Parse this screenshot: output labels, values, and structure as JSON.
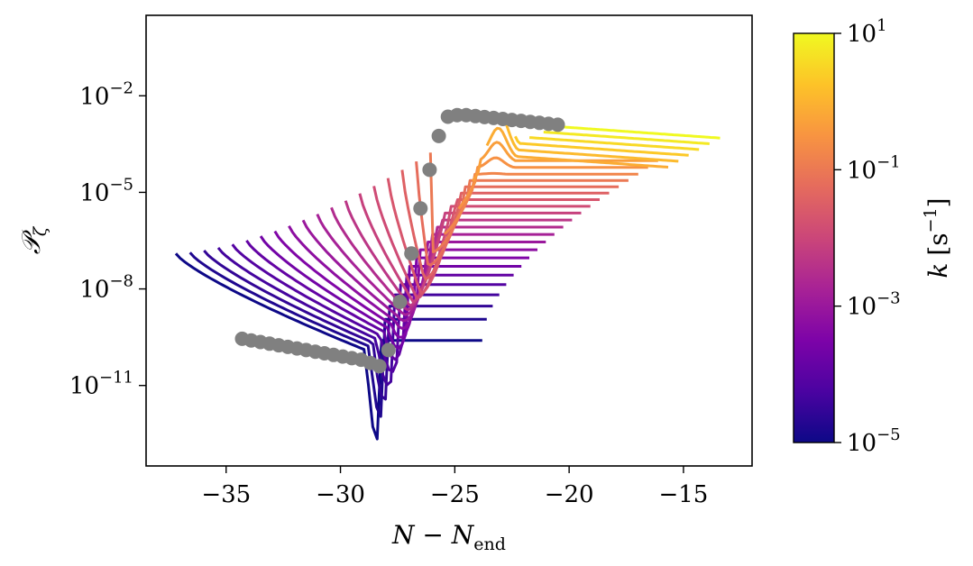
{
  "chart_data": {
    "type": "line",
    "xlabel": "N − N_end",
    "ylabel": "𝒫_ζ",
    "xlim": [
      -38.5,
      -12
    ],
    "ylim_log10": [
      -13.5,
      0.5
    ],
    "y_scale": "log",
    "grid": false,
    "x_ticks": [
      "−35",
      "−30",
      "−25",
      "−20",
      "−15"
    ],
    "x_tick_values": [
      -35,
      -30,
      -25,
      -20,
      -15
    ],
    "y_ticks": [
      {
        "base": "10",
        "exp": "−2",
        "value": -2
      },
      {
        "base": "10",
        "exp": "−5",
        "value": -5
      },
      {
        "base": "10",
        "exp": "−8",
        "value": -8
      },
      {
        "base": "10",
        "exp": "−11",
        "value": -11
      }
    ],
    "colorbar": {
      "label": "k [s⁻¹]",
      "label_k": "k",
      "label_unit_base": "[s",
      "label_unit_exp": "−1",
      "label_unit_close": "]",
      "scale": "log",
      "range_log10": [
        -5,
        1
      ],
      "colormap": "plasma",
      "ticks": [
        {
          "base": "10",
          "exp": "1",
          "value": 1
        },
        {
          "base": "10",
          "exp": "−1",
          "value": -1
        },
        {
          "base": "10",
          "exp": "−3",
          "value": -3
        },
        {
          "base": "10",
          "exp": "−5",
          "value": -5
        }
      ]
    },
    "curve_family": {
      "description_note": "",
      "count": 28,
      "start_x_range": [
        -37.2,
        -20.5
      ],
      "end_x_range": [
        -23.8,
        -13.4
      ],
      "start_log10_P_range": [
        -6.9,
        -0.9
      ],
      "plateau_log10_P_range": [
        -9.6,
        -3.0
      ]
    },
    "marker_series": {
      "color": "#808080",
      "points": [
        [
          -34.3,
          -9.55
        ],
        [
          -33.9,
          -9.6
        ],
        [
          -33.5,
          -9.65
        ],
        [
          -33.1,
          -9.7
        ],
        [
          -32.7,
          -9.75
        ],
        [
          -32.3,
          -9.8
        ],
        [
          -31.9,
          -9.85
        ],
        [
          -31.5,
          -9.9
        ],
        [
          -31.1,
          -9.95
        ],
        [
          -30.7,
          -10.0
        ],
        [
          -30.3,
          -10.05
        ],
        [
          -29.9,
          -10.1
        ],
        [
          -29.5,
          -10.15
        ],
        [
          -29.1,
          -10.2
        ],
        [
          -28.7,
          -10.3
        ],
        [
          -28.3,
          -10.4
        ],
        [
          -27.9,
          -9.9
        ],
        [
          -27.4,
          -8.4
        ],
        [
          -26.9,
          -6.9
        ],
        [
          -26.5,
          -5.5
        ],
        [
          -26.1,
          -4.3
        ],
        [
          -25.7,
          -3.25
        ],
        [
          -25.3,
          -2.65
        ],
        [
          -24.9,
          -2.6
        ],
        [
          -24.5,
          -2.6
        ],
        [
          -24.1,
          -2.63
        ],
        [
          -23.7,
          -2.66
        ],
        [
          -23.3,
          -2.69
        ],
        [
          -22.9,
          -2.72
        ],
        [
          -22.5,
          -2.75
        ],
        [
          -22.1,
          -2.78
        ],
        [
          -21.7,
          -2.81
        ],
        [
          -21.3,
          -2.84
        ],
        [
          -20.9,
          -2.87
        ],
        [
          -20.5,
          -2.9
        ]
      ]
    }
  }
}
